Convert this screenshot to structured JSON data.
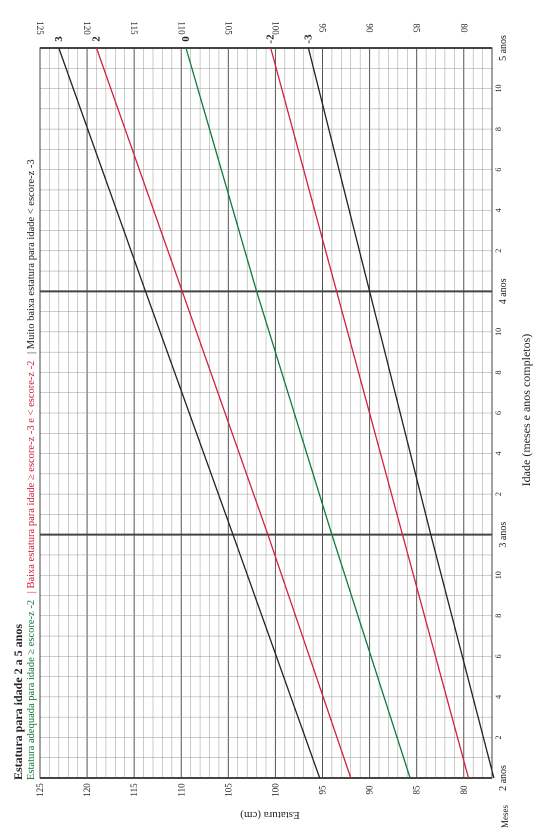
{
  "chart_data": {
    "type": "line",
    "title": "Estatura para idade 2 a 5 anos",
    "legend": [
      {
        "text": "Estatura adequada para idade ≥ escore-z -2",
        "color": "#0f7a3a"
      },
      {
        "text": "| Baixa estatura para idade ≥ escore-z -3 e < escore-z -2",
        "color": "#d0213d"
      },
      {
        "text": "| Muito baixa estatura para idade < escore-z -3",
        "color": "#222222"
      }
    ],
    "ylabel": "Estatura (cm)",
    "xlabel": "Idade (meses e anos completos)",
    "months_label": "Meses",
    "ylim": [
      77,
      125
    ],
    "y_ticks": [
      80,
      85,
      90,
      95,
      100,
      105,
      110,
      115,
      120,
      125
    ],
    "x_month_range": [
      24,
      60
    ],
    "month_tick_labels": [
      {
        "month": 26,
        "label": "2"
      },
      {
        "month": 28,
        "label": "4"
      },
      {
        "month": 30,
        "label": "6"
      },
      {
        "month": 32,
        "label": "8"
      },
      {
        "month": 34,
        "label": "10"
      },
      {
        "month": 38,
        "label": "2"
      },
      {
        "month": 40,
        "label": "4"
      },
      {
        "month": 42,
        "label": "6"
      },
      {
        "month": 44,
        "label": "8"
      },
      {
        "month": 46,
        "label": "10"
      },
      {
        "month": 50,
        "label": "2"
      },
      {
        "month": 52,
        "label": "4"
      },
      {
        "month": 54,
        "label": "6"
      },
      {
        "month": 56,
        "label": "8"
      },
      {
        "month": 58,
        "label": "10"
      }
    ],
    "year_labels": [
      {
        "month": 24,
        "label": "2 anos"
      },
      {
        "month": 36,
        "label": "3 anos"
      },
      {
        "month": 48,
        "label": "4 anos"
      },
      {
        "month": 60,
        "label": "5 anos"
      }
    ],
    "series": [
      {
        "name": "3",
        "color": "#222222",
        "x": [
          24,
          36,
          48,
          60
        ],
        "y": [
          95.3,
          104.5,
          113.8,
          123.0
        ]
      },
      {
        "name": "2",
        "color": "#d0213d",
        "x": [
          24,
          36,
          48,
          60
        ],
        "y": [
          92.0,
          100.8,
          109.9,
          119.0
        ]
      },
      {
        "name": "0",
        "color": "#0f7a3a",
        "x": [
          24,
          36,
          48,
          60
        ],
        "y": [
          85.7,
          94.0,
          102.0,
          109.5
        ]
      },
      {
        "name": "-2",
        "color": "#d0213d",
        "x": [
          24,
          36,
          48,
          60
        ],
        "y": [
          79.5,
          86.5,
          93.5,
          100.5
        ]
      },
      {
        "name": "-3",
        "color": "#222222",
        "x": [
          24,
          36,
          48,
          60
        ],
        "y": [
          76.8,
          83.5,
          90.0,
          96.5
        ]
      }
    ]
  }
}
